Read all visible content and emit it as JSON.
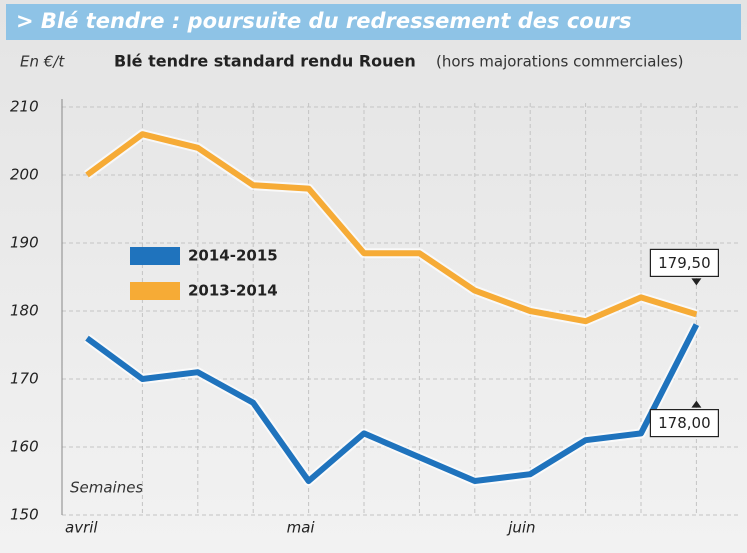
{
  "chart_data": {
    "type": "line",
    "title": "> Blé tendre : poursuite du redressement des cours",
    "unit_label": "En €/t",
    "subtitle": "Blé tendre standard rendu Rouen",
    "subtitle_note": "(hors majorations commerciales)",
    "x_annotation": "Semaines",
    "categories": [
      "avril",
      null,
      null,
      null,
      "mai",
      null,
      null,
      null,
      "juin",
      null,
      null,
      null
    ],
    "series": [
      {
        "name": "2014-2015",
        "color": "#1f73bd",
        "values": [
          176,
          170,
          171,
          166.5,
          155,
          162,
          158.5,
          155,
          156,
          161,
          162,
          178
        ],
        "value_labels": [
          null,
          null,
          null,
          null,
          null,
          null,
          null,
          null,
          null,
          null,
          null,
          "178,00"
        ]
      },
      {
        "name": "2013-2014",
        "color": "#f6ab36",
        "values": [
          200,
          206,
          204,
          198.5,
          198,
          188.5,
          188.5,
          183,
          180,
          178.5,
          182,
          179.5
        ],
        "value_labels": [
          null,
          null,
          null,
          null,
          null,
          null,
          null,
          null,
          null,
          null,
          null,
          "179,50"
        ]
      }
    ],
    "ylim": [
      150,
      210
    ],
    "yticks": [
      150,
      160,
      170,
      180,
      190,
      200,
      210
    ],
    "grid": true
  }
}
